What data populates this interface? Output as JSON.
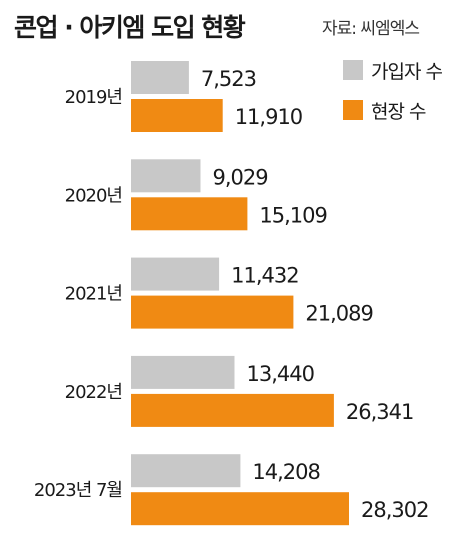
{
  "header": {
    "title": "콘업 · 아키엠 도입 현황",
    "source": "자료: 씨엠엑스"
  },
  "colors": {
    "subscribers": "#c8c8c8",
    "sites": "#f08a13"
  },
  "chart_data": {
    "type": "bar",
    "orientation": "horizontal",
    "categories": [
      "2019년",
      "2020년",
      "2021년",
      "2022년",
      "2023년 7월"
    ],
    "series": [
      {
        "name": "가입자 수",
        "values": [
          7523,
          9029,
          11432,
          13440,
          14208
        ],
        "labels": [
          "7,523",
          "9,029",
          "11,432",
          "13,440",
          "14,208"
        ]
      },
      {
        "name": "현장 수",
        "values": [
          11910,
          15109,
          21089,
          26341,
          28302
        ],
        "labels": [
          "11,910",
          "15,109",
          "21,089",
          "26,341",
          "28,302"
        ]
      }
    ],
    "legend": "top-right",
    "grid": false
  }
}
